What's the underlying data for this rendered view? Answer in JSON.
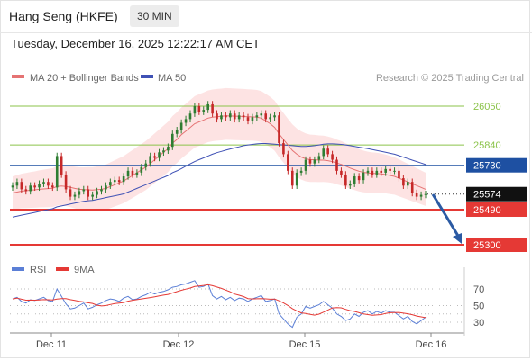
{
  "header": {
    "title": "Hang Seng (HKFE)",
    "timeframe": "30 MIN",
    "datetime": "Tuesday, December 16, 2025 12:22:17 AM CET"
  },
  "legend": {
    "ma20_label": "MA 20 + Bollinger Bands",
    "ma50_label": "MA 50",
    "copyright": "Research © 2025 Trading Central",
    "rsi_label": "RSI",
    "rsi_ma_label": "9MA"
  },
  "colors": {
    "bull": "#2e7d32",
    "bear": "#c62828",
    "ma20": "#e57373",
    "ma50": "#3f51b5",
    "bollinger_fill": "#fcd9d9",
    "resistance_green": "#8bc34a",
    "support_red": "#e53935",
    "level_blue": "#1e50a2",
    "rsi": "#5b7fd6",
    "rsi_ma": "#e53935",
    "arrow": "#2b5aa3"
  },
  "chart_data": [
    {
      "type": "candlestick",
      "x_labels": [
        "Dec 11",
        "Dec 12",
        "Dec 15",
        "Dec 16"
      ],
      "price_levels": [
        {
          "value": 26050,
          "label": "26050",
          "kind": "resistance"
        },
        {
          "value": 25840,
          "label": "25840",
          "kind": "resistance"
        },
        {
          "value": 25730,
          "label": "25730",
          "kind": "pivot"
        },
        {
          "value": 25574,
          "label": "25574",
          "kind": "last"
        },
        {
          "value": 25490,
          "label": "25490",
          "kind": "support"
        },
        {
          "value": 25300,
          "label": "25300",
          "kind": "support"
        }
      ],
      "ylim": [
        25300,
        26100
      ],
      "series_close": [
        25620,
        25640,
        25600,
        25590,
        25620,
        25610,
        25630,
        25640,
        25620,
        25610,
        25780,
        25680,
        25600,
        25560,
        25570,
        25590,
        25600,
        25560,
        25570,
        25590,
        25600,
        25620,
        25640,
        25650,
        25640,
        25670,
        25700,
        25680,
        25690,
        25720,
        25740,
        25780,
        25770,
        25800,
        25810,
        25830,
        25900,
        25920,
        25960,
        25980,
        26010,
        26050,
        26020,
        26030,
        26060,
        26010,
        25980,
        26000,
        25990,
        26010,
        25980,
        26000,
        25990,
        25970,
        25990,
        26000,
        26010,
        25980,
        25990,
        26000,
        25850,
        25790,
        25700,
        25620,
        25690,
        25700,
        25760,
        25740,
        25760,
        25780,
        25820,
        25790,
        25760,
        25700,
        25680,
        25620,
        25630,
        25670,
        25650,
        25690,
        25700,
        25680,
        25700,
        25690,
        25710,
        25700,
        25700,
        25660,
        25620,
        25640,
        25580,
        25560,
        25570,
        25574
      ],
      "ma20": [
        25580,
        25585,
        25590,
        25592,
        25595,
        25597,
        25600,
        25602,
        25604,
        25606,
        25615,
        25618,
        25615,
        25610,
        25605,
        25600,
        25598,
        25597,
        25596,
        25598,
        25600,
        25605,
        25615,
        25625,
        25635,
        25645,
        25660,
        25675,
        25690,
        25705,
        25720,
        25740,
        25760,
        25780,
        25800,
        25820,
        25850,
        25870,
        25895,
        25915,
        25935,
        25955,
        25965,
        25975,
        25985,
        25990,
        25993,
        25995,
        25998,
        25997,
        25996,
        25995,
        25994,
        25993,
        25992,
        25990,
        25985,
        25970,
        25955,
        25935,
        25900,
        25870,
        25840,
        25810,
        25790,
        25775,
        25765,
        25760,
        25760,
        25758,
        25758,
        25755,
        25750,
        25742,
        25735,
        25725,
        25715,
        25706,
        25698,
        25692,
        25688,
        25686,
        25686,
        25684,
        25680,
        25675,
        25670,
        25660,
        25650,
        25640,
        25630,
        25620,
        25610,
        25600
      ],
      "ma50": [
        25450,
        25455,
        25460,
        25465,
        25470,
        25475,
        25480,
        25485,
        25490,
        25495,
        25505,
        25510,
        25515,
        25520,
        25525,
        25530,
        25535,
        25538,
        25540,
        25545,
        25550,
        25555,
        25560,
        25565,
        25570,
        25575,
        25585,
        25595,
        25605,
        25615,
        25625,
        25635,
        25645,
        25655,
        25665,
        25675,
        25690,
        25700,
        25712,
        25725,
        25738,
        25750,
        25760,
        25770,
        25780,
        25790,
        25798,
        25805,
        25812,
        25818,
        25824,
        25830,
        25836,
        25840,
        25843,
        25846,
        25848,
        25848,
        25846,
        25844,
        25842,
        25840,
        25838,
        25836,
        25834,
        25832,
        25832,
        25834,
        25836,
        25840,
        25844,
        25846,
        25846,
        25845,
        25843,
        25840,
        25836,
        25832,
        25828,
        25824,
        25820,
        25815,
        25810,
        25805,
        25800,
        25795,
        25790,
        25782,
        25774,
        25766,
        25758,
        25750,
        25742,
        25734
      ],
      "rsi": [
        58,
        60,
        55,
        53,
        57,
        56,
        58,
        60,
        56,
        55,
        70,
        61,
        52,
        46,
        47,
        50,
        53,
        46,
        48,
        51,
        53,
        56,
        58,
        57,
        55,
        59,
        61,
        57,
        58,
        61,
        63,
        66,
        64,
        66,
        67,
        69,
        72,
        73,
        75,
        76,
        78,
        80,
        72,
        73,
        76,
        62,
        58,
        61,
        57,
        60,
        56,
        59,
        58,
        55,
        58,
        60,
        62,
        55,
        56,
        58,
        40,
        34,
        28,
        24,
        36,
        40,
        49,
        47,
        49,
        51,
        55,
        51,
        47,
        40,
        37,
        32,
        34,
        40,
        37,
        42,
        44,
        40,
        43,
        41,
        44,
        42,
        42,
        38,
        34,
        37,
        31,
        28,
        32,
        36
      ]
    }
  ]
}
